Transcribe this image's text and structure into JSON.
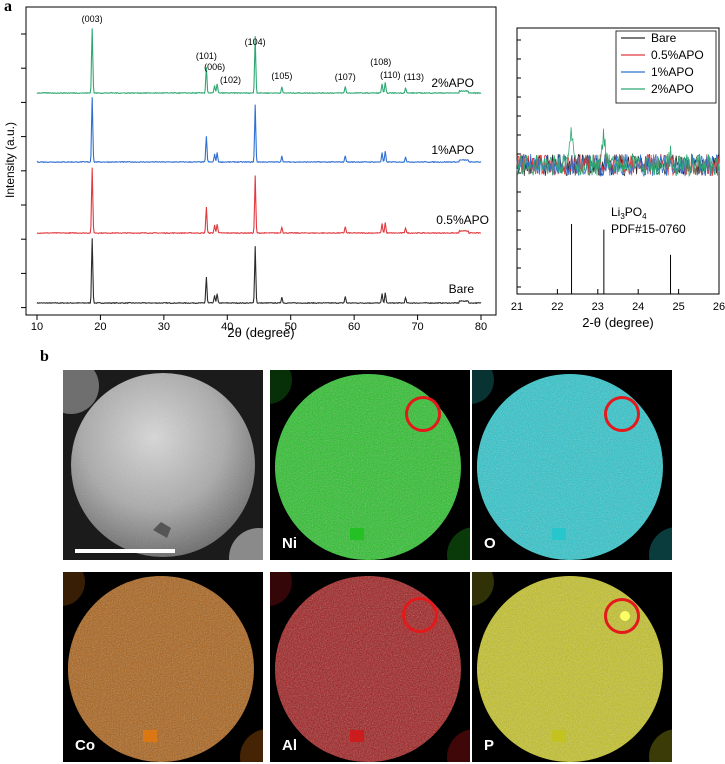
{
  "figure": {
    "panel_a": "a",
    "panel_b": "b"
  },
  "chart_data": [
    {
      "type": "line",
      "xlabel": "2θ (degree)",
      "ylabel": "Intensity (a.u.)",
      "xlim": [
        10,
        80
      ],
      "xticks": [
        10,
        20,
        30,
        40,
        50,
        60,
        70,
        80
      ],
      "series": [
        {
          "name": "Bare",
          "color": "#2b2b2b",
          "offset": 0
        },
        {
          "name": "0.5%APO",
          "color": "#e0393e",
          "offset": 1
        },
        {
          "name": "1%APO",
          "color": "#2f6fd1",
          "offset": 2
        },
        {
          "name": "2%APO",
          "color": "#2fa872",
          "offset": 3
        }
      ],
      "peaks": [
        {
          "hkl": "(003)",
          "x": 18.7,
          "height": 1.0
        },
        {
          "hkl": "(101)",
          "x": 36.7,
          "height": 0.4
        },
        {
          "hkl": "(006)",
          "x": 38.0,
          "height": 0.12
        },
        {
          "hkl": "(102)",
          "x": 38.4,
          "height": 0.14
        },
        {
          "hkl": "(104)",
          "x": 44.4,
          "height": 0.88
        },
        {
          "hkl": "(105)",
          "x": 48.6,
          "height": 0.09
        },
        {
          "hkl": "(107)",
          "x": 58.6,
          "height": 0.1
        },
        {
          "hkl": "(108)",
          "x": 64.4,
          "height": 0.14
        },
        {
          "hkl": "(110)",
          "x": 64.9,
          "height": 0.16
        },
        {
          "hkl": "(113)",
          "x": 68.1,
          "height": 0.08
        }
      ],
      "peak_labels": [
        "(003)",
        "(101)",
        "(006)",
        "(102)",
        "(104)",
        "(105)",
        "(107)",
        "(108)",
        "(110)",
        "(113)"
      ],
      "curve_labels": [
        "2%APO",
        "1%APO",
        "0.5%APO",
        "Bare"
      ]
    },
    {
      "type": "line",
      "xlabel": "2-θ (degree)",
      "xlim": [
        21,
        26
      ],
      "xticks": [
        21,
        22,
        23,
        24,
        25,
        26
      ],
      "legend": [
        "Bare",
        "0.5%APO",
        "1%APO",
        "2%APO"
      ],
      "legend_placement": "top-right",
      "reference": {
        "label_main": "Li",
        "label_sub": "3",
        "label_tail": "PO",
        "label_sub2": "4",
        "card": "PDF#15-0760",
        "lines": [
          {
            "x": 22.35,
            "h": 1.0
          },
          {
            "x": 23.15,
            "h": 0.92
          },
          {
            "x": 24.8,
            "h": 0.56
          }
        ]
      }
    }
  ],
  "maps": [
    {
      "label": "",
      "color": "#9a9a9a",
      "type": "sem"
    },
    {
      "label": "Ni",
      "color": "#20c020"
    },
    {
      "label": "O",
      "color": "#22c6cc"
    },
    {
      "label": "Co",
      "color": "#e07810"
    },
    {
      "label": "Al",
      "color": "#d0181a"
    },
    {
      "label": "P",
      "color": "#c4c21c"
    }
  ]
}
